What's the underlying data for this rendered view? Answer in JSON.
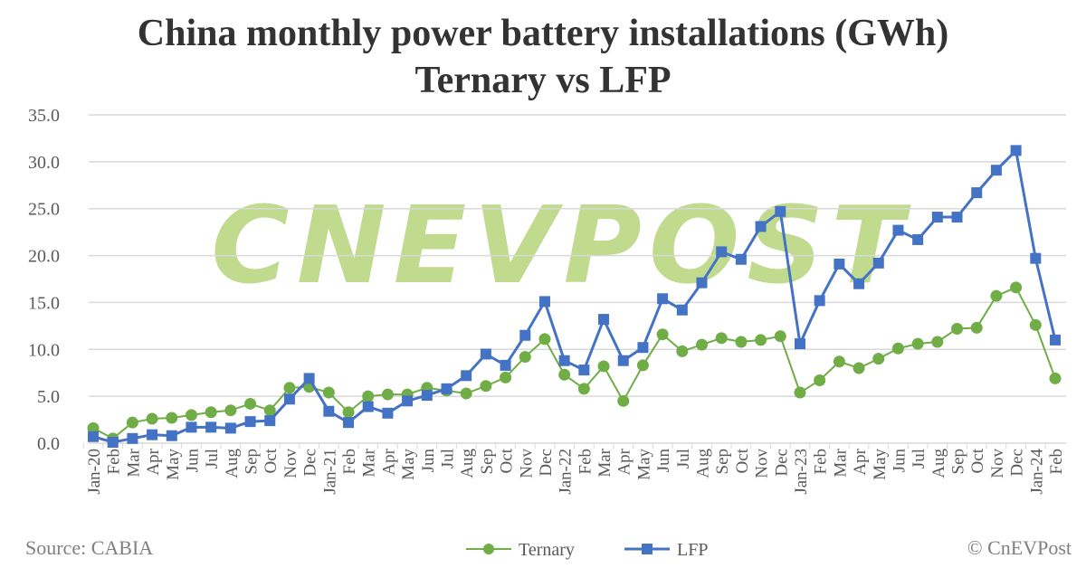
{
  "chart_data": {
    "type": "line",
    "title": "China monthly power battery installations (GWh)",
    "subtitle": "Ternary vs LFP",
    "watermark": "CnEVPost",
    "ylim": [
      0,
      35
    ],
    "yticks": [
      "0.0",
      "5.0",
      "10.0",
      "15.0",
      "20.0",
      "25.0",
      "30.0",
      "35.0"
    ],
    "grid": true,
    "legend_placement": "bottom",
    "categories": [
      "Jan-20",
      "Feb",
      "Mar",
      "Apr",
      "May",
      "Jun",
      "Jul",
      "Aug",
      "Sep",
      "Oct",
      "Nov",
      "Dec",
      "Jan-21",
      "Feb",
      "Mar",
      "Apr",
      "May",
      "Jun",
      "Jul",
      "Aug",
      "Sep",
      "Oct",
      "Nov",
      "Dec",
      "Jan-22",
      "Feb",
      "Mar",
      "Apr",
      "May",
      "Jun",
      "Jul",
      "Aug",
      "Sep",
      "Oct",
      "Nov",
      "Dec",
      "Jan-23",
      "Feb",
      "Mar",
      "Apr",
      "May",
      "Jun",
      "Jul",
      "Aug",
      "Sep",
      "Oct",
      "Nov",
      "Dec",
      "Jan-24",
      "Feb"
    ],
    "series": [
      {
        "name": "Ternary",
        "color": "#70ad47",
        "marker": "circle",
        "values": [
          1.6,
          0.5,
          2.2,
          2.6,
          2.7,
          3.0,
          3.3,
          3.5,
          4.2,
          3.5,
          5.9,
          6.0,
          5.4,
          3.3,
          5.0,
          5.2,
          5.2,
          5.9,
          5.6,
          5.3,
          6.1,
          7.0,
          9.2,
          11.1,
          7.3,
          5.8,
          8.2,
          4.5,
          8.3,
          11.6,
          9.8,
          10.5,
          11.2,
          10.8,
          11.0,
          11.4,
          5.4,
          6.7,
          8.7,
          8.0,
          9.0,
          10.1,
          10.6,
          10.8,
          12.2,
          12.3,
          15.7,
          16.6,
          12.6,
          6.9
        ]
      },
      {
        "name": "LFP",
        "color": "#4472c4",
        "marker": "square",
        "values": [
          0.7,
          0.1,
          0.5,
          0.9,
          0.8,
          1.7,
          1.7,
          1.6,
          2.3,
          2.4,
          4.7,
          6.9,
          3.4,
          2.2,
          3.9,
          3.2,
          4.5,
          5.1,
          5.8,
          7.2,
          9.5,
          8.3,
          11.5,
          15.1,
          8.8,
          7.8,
          13.2,
          8.8,
          10.2,
          15.4,
          14.2,
          17.1,
          20.4,
          19.6,
          23.1,
          24.7,
          10.6,
          15.2,
          19.1,
          17.0,
          19.2,
          22.7,
          21.7,
          24.1,
          24.1,
          26.7,
          29.1,
          31.2,
          19.7,
          11.0
        ]
      }
    ],
    "source": "Source: CABIA",
    "copyright": "© CnEVPost"
  }
}
